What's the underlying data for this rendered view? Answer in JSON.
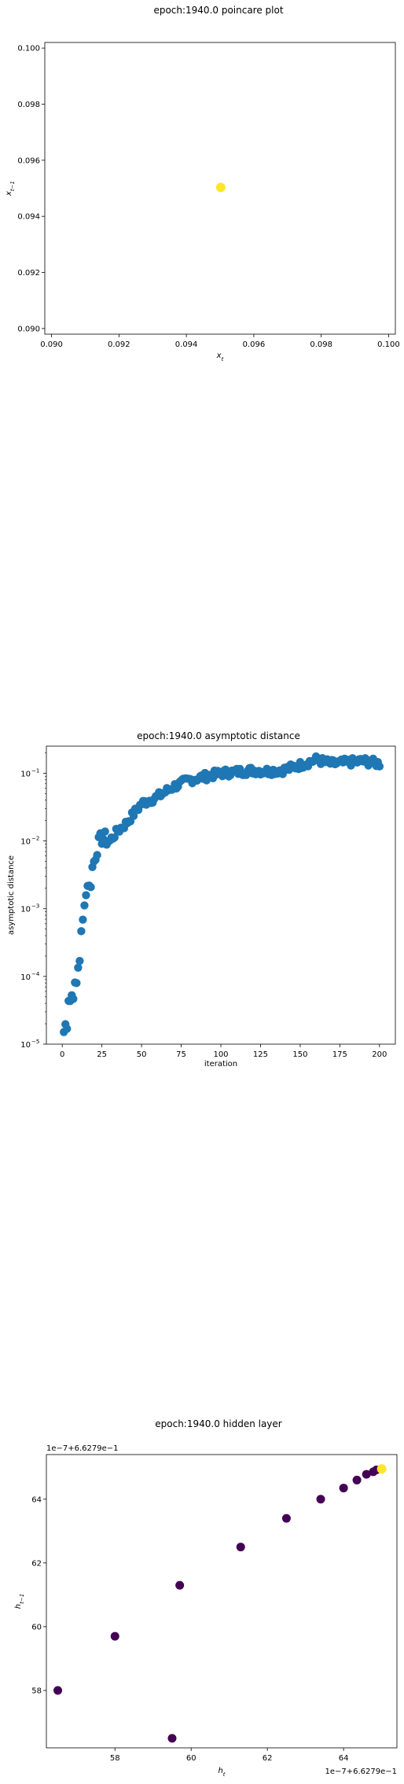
{
  "chart_data": [
    {
      "type": "scatter",
      "title": "epoch:1940.0 poincare plot",
      "xlabel": "x_t",
      "ylabel": "x_{t-1}",
      "xlim": [
        0.0898,
        0.1002
      ],
      "ylim": [
        0.0898,
        0.1002
      ],
      "xticks": [
        "0.090",
        "0.092",
        "0.094",
        "0.096",
        "0.098",
        "0.100"
      ],
      "yticks": [
        "0.090",
        "0.092",
        "0.094",
        "0.096",
        "0.098",
        "0.100"
      ],
      "xtick_values": [
        0.09,
        0.092,
        0.094,
        0.096,
        0.098,
        0.1
      ],
      "ytick_values": [
        0.09,
        0.092,
        0.094,
        0.096,
        0.098,
        0.1
      ],
      "points": [
        [
          0.09502,
          0.09503
        ]
      ],
      "point_color": "#fde725",
      "grid": false
    },
    {
      "type": "scatter",
      "title": "epoch:1940.0 asymptotic distance",
      "xlabel": "iteration",
      "ylabel": "asymptotic distance",
      "xlim": [
        -10,
        210
      ],
      "ylim_log10": [
        -5,
        -0.6
      ],
      "yscale": "log",
      "xticks": [
        "0",
        "25",
        "50",
        "75",
        "100",
        "125",
        "150",
        "175",
        "200"
      ],
      "xtick_values": [
        0,
        25,
        50,
        75,
        100,
        125,
        150,
        175,
        200
      ],
      "yticks": [
        "10",
        "10",
        "10",
        "10",
        "10"
      ],
      "ytick_exponents": [
        "−5",
        "−4",
        "−3",
        "−2",
        "−1"
      ],
      "ytick_values_log10": [
        -5,
        -4,
        -3,
        -2,
        -1
      ],
      "anchors_log10": [
        [
          1,
          -4.82
        ],
        [
          2,
          -4.72
        ],
        [
          3,
          -4.68
        ],
        [
          4,
          -4.3
        ],
        [
          5,
          -4.35
        ],
        [
          6,
          -4.28
        ],
        [
          8,
          -4.18
        ],
        [
          9,
          -4.12
        ],
        [
          10,
          -3.85
        ],
        [
          11,
          -3.72
        ],
        [
          12,
          -3.4
        ],
        [
          13,
          -3.2
        ],
        [
          14,
          -2.85
        ],
        [
          15,
          -2.8
        ],
        [
          16,
          -2.6
        ],
        [
          17,
          -2.7
        ],
        [
          18,
          -2.6
        ],
        [
          19,
          -2.4
        ],
        [
          20,
          -2.3
        ],
        [
          22,
          -2.1
        ],
        [
          25,
          -1.95
        ],
        [
          30,
          -2.0
        ],
        [
          35,
          -1.85
        ],
        [
          40,
          -1.75
        ],
        [
          45,
          -1.6
        ],
        [
          50,
          -1.45
        ],
        [
          60,
          -1.35
        ],
        [
          70,
          -1.2
        ],
        [
          80,
          -1.1
        ],
        [
          90,
          -1.05
        ],
        [
          100,
          -1.0
        ],
        [
          110,
          -0.98
        ],
        [
          120,
          -0.96
        ],
        [
          130,
          -0.97
        ],
        [
          140,
          -0.95
        ],
        [
          150,
          -0.88
        ],
        [
          160,
          -0.8
        ],
        [
          170,
          -0.86
        ],
        [
          180,
          -0.84
        ],
        [
          190,
          -0.82
        ],
        [
          200,
          -0.86
        ]
      ],
      "point_color": "#1f77b4",
      "grid": false
    },
    {
      "type": "scatter",
      "title": "epoch:1940.0 hidden layer",
      "xlabel": "h_t",
      "ylabel": "h_{t-1}",
      "offset_label": "1e−7+6.6279e−1",
      "xlim": [
        56.2,
        65.4
      ],
      "ylim": [
        56.2,
        65.4
      ],
      "xticks": [
        "58",
        "60",
        "62",
        "64"
      ],
      "xtick_values": [
        58,
        60,
        62,
        64
      ],
      "yticks": [
        "58",
        "60",
        "62",
        "64"
      ],
      "ytick_values": [
        58,
        60,
        62,
        64
      ],
      "points": [
        [
          56.5,
          58.0
        ],
        [
          58.0,
          59.7
        ],
        [
          59.7,
          61.3
        ],
        [
          61.3,
          62.5
        ],
        [
          62.5,
          63.4
        ],
        [
          63.4,
          64.0
        ],
        [
          64.0,
          64.35
        ],
        [
          64.35,
          64.6
        ],
        [
          64.6,
          64.78
        ],
        [
          64.78,
          64.86
        ],
        [
          64.86,
          64.92
        ],
        [
          59.5,
          56.5
        ]
      ],
      "last_point": [
        65.0,
        64.95
      ],
      "point_color": "#440154",
      "last_point_color": "#fde725",
      "grid": false
    }
  ]
}
